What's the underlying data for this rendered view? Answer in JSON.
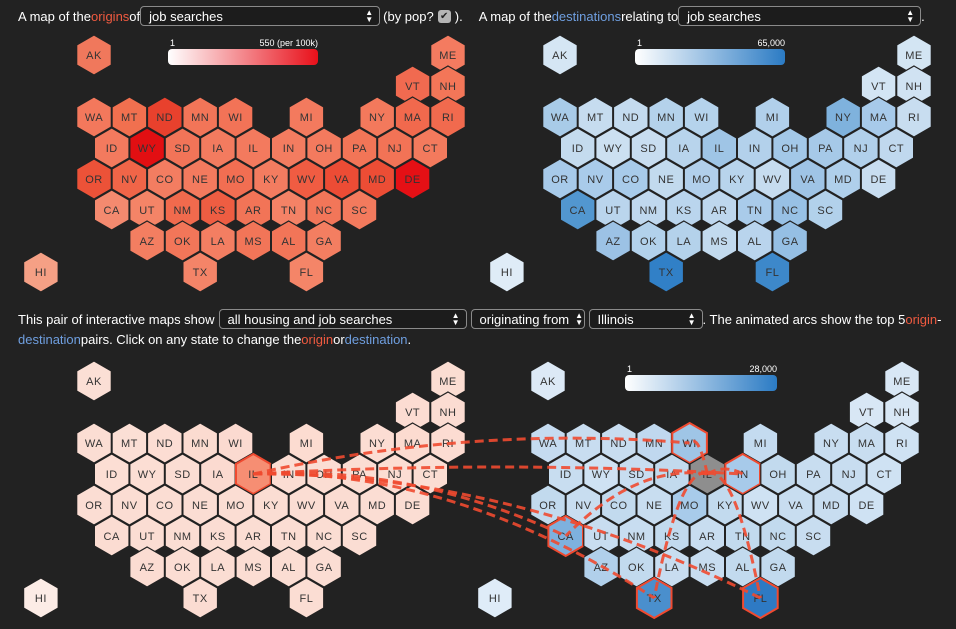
{
  "header1": {
    "p1": "A map of the ",
    "origins": "origins",
    "p2": " of ",
    "select1": "job searches",
    "p3": "(by pop?",
    "p4": ").",
    "p5": "A map of the ",
    "destinations": "destinations",
    "p6": " relating to ",
    "select2": "job searches",
    "p7": "."
  },
  "header2": {
    "p1": "This pair of interactive maps show",
    "select_type": "all housing and job searches",
    "select_dir": "originating from",
    "select_state": "Illinois",
    "p2": ". The animated arcs show the top 5 ",
    "origin": "origin",
    "p3": " - ",
    "destination": "destination",
    "p4": " pairs. Click on any state to change the ",
    "origin2": "origin",
    "p5": " or ",
    "destination2": "destination",
    "p6": "."
  },
  "legends": {
    "top_left": {
      "min": "1",
      "max": "550 (per 100k)",
      "color_from": "#ffffff",
      "color_to": "#e8101a"
    },
    "top_right": {
      "min": "1",
      "max": "65,000",
      "color_from": "#ffffff",
      "color_to": "#2b7bc4"
    },
    "bottom_right": {
      "min": "1",
      "max": "28,000",
      "color_from": "#ffffff",
      "color_to": "#2b7bc4"
    }
  },
  "maps": {
    "top_left": {
      "AK": "#f0785c",
      "HI": "#f5a085",
      "ME": "#f47b60",
      "VT": "#f16a50",
      "NH": "#f37658",
      "WA": "#f3785c",
      "MT": "#f1704f",
      "ND": "#e8412d",
      "MN": "#f27558",
      "WI": "#f27357",
      "MI": "#f37a5e",
      "NY": "#f3795c",
      "MA": "#f1694d",
      "RI": "#f16a4e",
      "ID": "#f37a5e",
      "WY": "#e20f12",
      "SD": "#f27458",
      "IA": "#f37b5f",
      "IL": "#f37a5e",
      "IN": "#f37c60",
      "OH": "#f37a5e",
      "PA": "#f27557",
      "NJ": "#f27356",
      "CT": "#f37a5d",
      "OR": "#ec5238",
      "NV": "#f06548",
      "CO": "#f37d61",
      "NE": "#f37a5e",
      "MO": "#f26e52",
      "KY": "#f37c60",
      "WV": "#f05c42",
      "VA": "#ec4c35",
      "MD": "#ec4d35",
      "DE": "#e51015",
      "CA": "#f48a6f",
      "UT": "#f48467",
      "NM": "#f16a4d",
      "KS": "#ee5d42",
      "AR": "#f27457",
      "TN": "#f48266",
      "NC": "#f27659",
      "SC": "#f37a5d",
      "AZ": "#f37e61",
      "OK": "#f27659",
      "LA": "#f37e62",
      "MS": "#f27558",
      "AL": "#f27558",
      "GA": "#f37e61",
      "TX": "#f48468",
      "FL": "#f48568"
    },
    "top_right": {
      "AK": "#d5e6f4",
      "HI": "#dfecf7",
      "ME": "#d3e5f3",
      "VT": "#d3e5f4",
      "NH": "#d0e2f2",
      "WA": "#a8cbe8",
      "MT": "#c6dcef",
      "ND": "#c4dbef",
      "MN": "#b4d2eb",
      "WI": "#b5d3ec",
      "MI": "#b1d0eb",
      "NY": "#7fb2dd",
      "MA": "#a7caea",
      "RI": "#c8ddf0",
      "ID": "#c4dbee",
      "WY": "#cce0f1",
      "SD": "#c8ddf0",
      "IA": "#b8d4ec",
      "IL": "#9fc5e6",
      "IN": "#b3d1eb",
      "OH": "#a3c8e8",
      "PA": "#a6c9e8",
      "NJ": "#b1d0eb",
      "CT": "#c0d8ee",
      "OR": "#a7caea",
      "NV": "#a9cbea",
      "CO": "#a8cbea",
      "NE": "#c2daee",
      "MO": "#b1cfeb",
      "KY": "#b8d4ec",
      "WV": "#c6dcef",
      "VA": "#9fc4e6",
      "MD": "#afcfeb",
      "DE": "#c8ddf0",
      "CA": "#5297d0",
      "UT": "#bad5ed",
      "NM": "#c0d8ee",
      "KS": "#bad5ed",
      "AR": "#bed7ee",
      "TN": "#a9cbea",
      "NC": "#98c1e5",
      "SC": "#b2d1eb",
      "AZ": "#9cc2e5",
      "OK": "#b2d1eb",
      "LA": "#b4d2eb",
      "MS": "#c2daee",
      "AL": "#b9d4ed",
      "GA": "#95bfe4",
      "TX": "#3180c7",
      "FL": "#3d88ca"
    },
    "bottom_left": {
      "AK": "#fbdfd5",
      "HI": "#fcece6",
      "ME": "#fbddd2",
      "VT": "#fcdcd2",
      "NH": "#fbdcd2",
      "WA": "#fbddd3",
      "MT": "#fbdfd5",
      "ND": "#fcddd3",
      "MN": "#fbdbd0",
      "WI": "#fbdad0",
      "MI": "#fcdcd1",
      "NY": "#fcddd3",
      "MA": "#fcdbd0",
      "RI": "#fcdcd2",
      "ID": "#fcded4",
      "WY": "#fcded4",
      "SD": "#fbddd3",
      "IA": "#fbdad0",
      "IL": "#f68e73",
      "IN": "#fbddd3",
      "OH": "#fbddd3",
      "PA": "#fbddd3",
      "NJ": "#fcddd3",
      "CT": "#fbddd3",
      "OR": "#fbddd3",
      "NV": "#fbddd3",
      "CO": "#fbddd3",
      "NE": "#fbddd3",
      "MO": "#fbddd3",
      "KY": "#fbddd3",
      "WV": "#fbddd3",
      "VA": "#fbdcd2",
      "MD": "#fbddd3",
      "DE": "#fbddd3",
      "CA": "#fbdcd2",
      "UT": "#fbddd3",
      "NM": "#fbddd3",
      "KS": "#fbddd3",
      "AR": "#fbddd3",
      "TN": "#fbddd3",
      "NC": "#fbddd3",
      "SC": "#fbddd3",
      "AZ": "#fbdcd2",
      "OK": "#fbddd3",
      "LA": "#fbddd3",
      "MS": "#fbddd3",
      "AL": "#fbddd3",
      "GA": "#fbddd3",
      "TX": "#fbdcd2",
      "FL": "#fbddd3"
    },
    "bottom_right": {
      "AK": "#dce9f6",
      "HI": "#dfecf8",
      "ME": "#d8e7f5",
      "VT": "#d8e7f5",
      "NH": "#d8e7f5",
      "WA": "#c5dbf0",
      "MT": "#c8ddf0",
      "ND": "#c8ddf0",
      "MN": "#c0d8ef",
      "WI": "#9fc5e6",
      "MI": "#c4dbf0",
      "NY": "#c8ddf0",
      "MA": "#c8ddf0",
      "RI": "#cfe2f3",
      "ID": "#c8ddf0",
      "WY": "#cfe2f3",
      "SD": "#c8ddf0",
      "IA": "#c2daee",
      "IL": "#8e8e8e",
      "IN": "#a7caea",
      "OH": "#c2daee",
      "PA": "#c8ddf0",
      "NJ": "#c8ddf0",
      "CT": "#cfe2f3",
      "OR": "#c2daee",
      "NV": "#c8ddf0",
      "CO": "#c2daee",
      "NE": "#c8ddf0",
      "MO": "#a8cbea",
      "KY": "#c2daee",
      "WV": "#cfe2f3",
      "VA": "#c8ddf0",
      "MD": "#c8ddf0",
      "DE": "#cfe2f3",
      "CA": "#7eb1de",
      "UT": "#c8ddf0",
      "NM": "#c8ddf0",
      "KS": "#c2daee",
      "AR": "#c8ddf0",
      "TN": "#c2daee",
      "NC": "#c2daee",
      "SC": "#c8ddf0",
      "AZ": "#b1d0eb",
      "OK": "#c2daee",
      "LA": "#c8ddf0",
      "MS": "#c8ddf0",
      "AL": "#c2daee",
      "GA": "#c2daee",
      "TX": "#4a8fcd",
      "FL": "#2e7ac4"
    }
  },
  "highlights": {
    "bottom_left": [
      "IL"
    ],
    "bottom_right": [
      "WI",
      "IN",
      "CA",
      "TX",
      "FL"
    ],
    "highlight_color": "#f04a30"
  },
  "arcs": {
    "from": "IL",
    "to": [
      "WI",
      "IN",
      "CA",
      "TX",
      "FL"
    ],
    "color": "#f04a30"
  }
}
